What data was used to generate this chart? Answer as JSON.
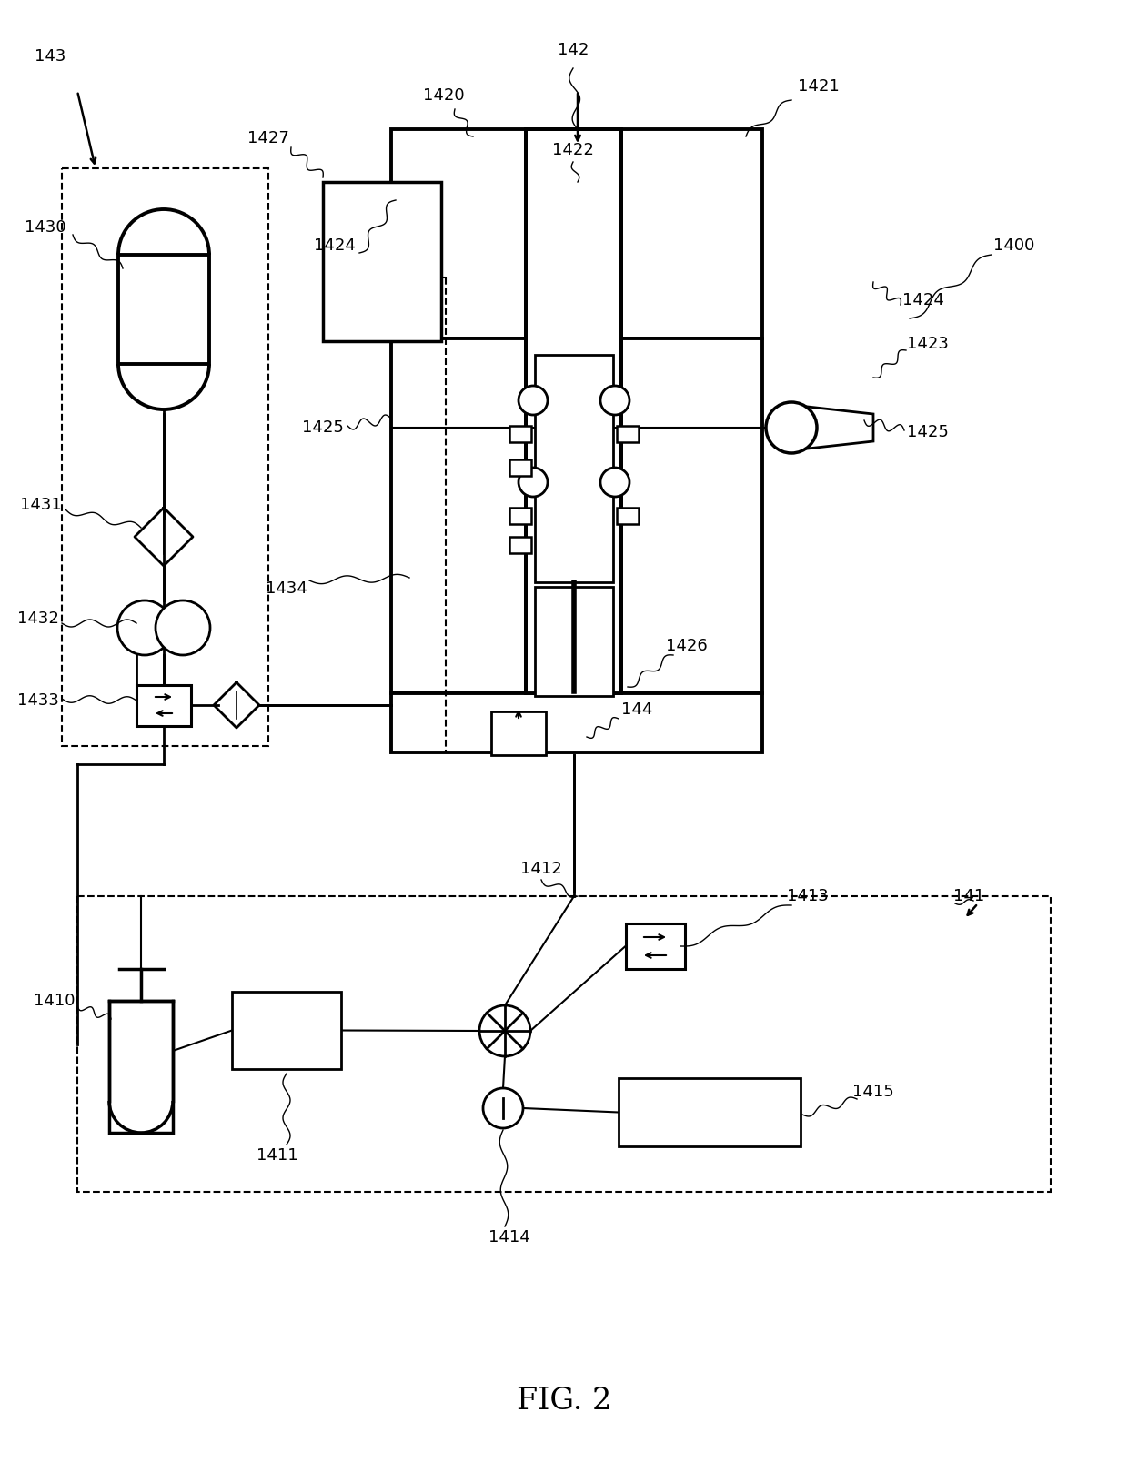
{
  "bg_color": "#ffffff",
  "fig_label": "FIG. 2",
  "lw_thick": 2.8,
  "lw_med": 2.0,
  "lw_thin": 1.5,
  "lw_dash": 1.5,
  "font_size": 13,
  "title_font_size": 24,
  "hatch_density": "////"
}
